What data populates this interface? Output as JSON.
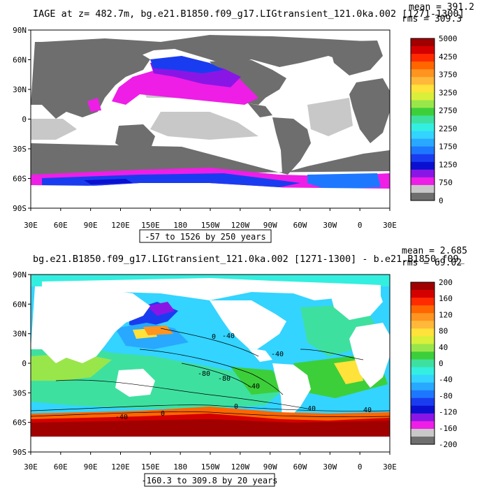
{
  "panels": [
    {
      "title": "IAGE at z= 482.7m, bg.e21.B1850.f09_g17.LIGtransient_121.0ka.002 [1271-1300]",
      "mean": "mean = 391.2",
      "rms": "rms = 309.3",
      "range_text": "-57 to 1526 by 250 years",
      "lat_labels": [
        "90N",
        "60N",
        "30N",
        "0",
        "30S",
        "60S",
        "90S"
      ],
      "lon_labels": [
        "30E",
        "60E",
        "90E",
        "120E",
        "150E",
        "180",
        "150W",
        "120W",
        "90W",
        "60W",
        "30W",
        "0",
        "30E"
      ],
      "colorbar": {
        "labels": [
          "5000",
          "4250",
          "3750",
          "3250",
          "2750",
          "2250",
          "1750",
          "1250",
          "750",
          "0"
        ],
        "colors": [
          "#a00000",
          "#d40000",
          "#ff2a00",
          "#ff6600",
          "#ff9420",
          "#ffb83a",
          "#ffe23a",
          "#d9ef3a",
          "#99e64a",
          "#3ccf3a",
          "#3ee0a0",
          "#33efe0",
          "#33d4ff",
          "#29a8ff",
          "#1e78ff",
          "#1a3cf0",
          "#0a10d0",
          "#8a16e6",
          "#ee1ee6",
          "#c8c8c8",
          "#6e6e6e"
        ]
      }
    },
    {
      "title": "bg.e21.B1850.f09_g17.LIGtransient_121.0ka.002 [1271-1300] - b.e21.B1850.f09_",
      "mean": "mean = 2.685",
      "rms": "rms = 69.02",
      "range_text": "-160.3 to 309.8 by 20 years",
      "lat_labels": [
        "90N",
        "60N",
        "30N",
        "0",
        "30S",
        "60S",
        "90S"
      ],
      "lon_labels": [
        "30E",
        "60E",
        "90E",
        "120E",
        "150E",
        "180",
        "150W",
        "120W",
        "90W",
        "60W",
        "30W",
        "0",
        "30E"
      ],
      "colorbar": {
        "labels": [
          "200",
          "160",
          "120",
          "80",
          "40",
          "0",
          "-40",
          "-80",
          "-120",
          "-160",
          "-200"
        ],
        "colors": [
          "#a00000",
          "#d40000",
          "#ff2a00",
          "#ff6600",
          "#ff9420",
          "#ffb83a",
          "#ffe23a",
          "#d9ef3a",
          "#99e64a",
          "#3ccf3a",
          "#3ee0a0",
          "#33efe0",
          "#33d4ff",
          "#29a8ff",
          "#1e78ff",
          "#1a3cf0",
          "#0a10d0",
          "#8a16e6",
          "#ee1ee6",
          "#c8c8c8",
          "#6e6e6e"
        ]
      },
      "contour_labels": [
        "0",
        "-40",
        "-80",
        "-80",
        "-40",
        "-40",
        "0",
        "40",
        "0",
        "-40",
        "40"
      ]
    }
  ]
}
